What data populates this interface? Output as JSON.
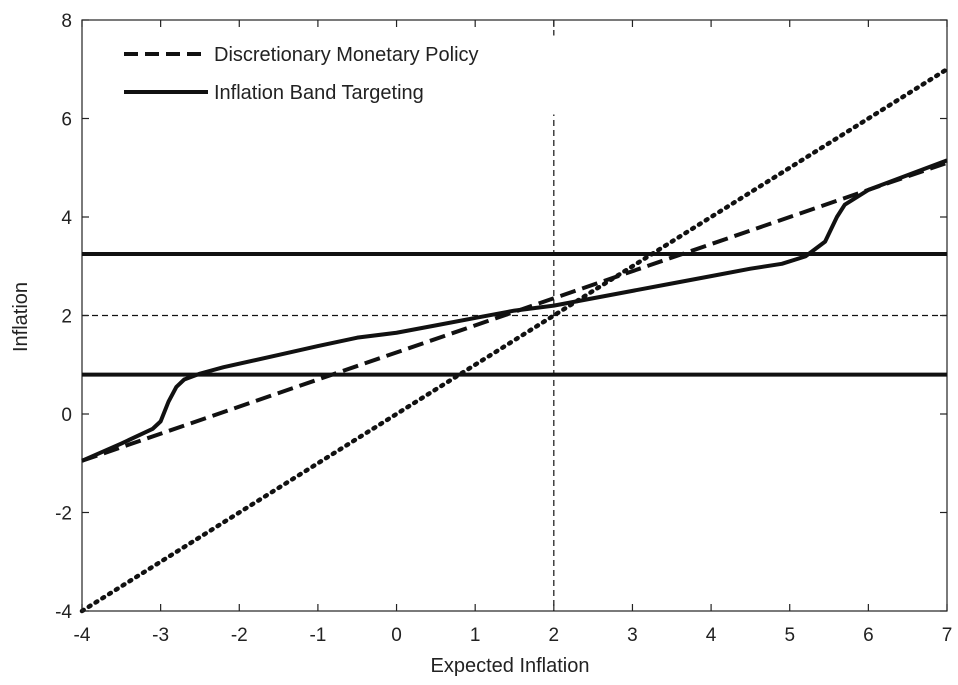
{
  "chart_data": {
    "type": "line",
    "title": "",
    "xlabel": "Expected Inflation",
    "ylabel": "Inflation",
    "xlim": [
      -4,
      7
    ],
    "ylim": [
      -4,
      8
    ],
    "xticks": [
      -4,
      -3,
      -2,
      -1,
      0,
      1,
      2,
      3,
      4,
      5,
      6,
      7
    ],
    "yticks": [
      -4,
      -2,
      0,
      2,
      4,
      6,
      8
    ],
    "grid": false,
    "legend_position": "top-left",
    "reference_lines": {
      "vertical_dashed_x": 2,
      "horizontal_dashed_y": 2,
      "band_upper": 3.25,
      "band_lower": 0.8
    },
    "series": [
      {
        "name": "Discretionary Monetary Policy",
        "style": "dashed",
        "x": [
          -4,
          7
        ],
        "y": [
          -0.95,
          5.1
        ]
      },
      {
        "name": "Inflation Band Targeting",
        "style": "solid",
        "x": [
          -4,
          -3.5,
          -3.1,
          -3.0,
          -2.9,
          -2.8,
          -2.7,
          -2.5,
          -2.2,
          -1.5,
          -1.0,
          -0.5,
          0.0,
          0.5,
          1.0,
          1.5,
          2.0,
          2.5,
          3.0,
          3.5,
          4.0,
          4.5,
          4.9,
          5.2,
          5.45,
          5.6,
          5.7,
          6.0,
          6.5,
          7.0
        ],
        "y": [
          -0.95,
          -0.6,
          -0.3,
          -0.15,
          0.25,
          0.55,
          0.7,
          0.82,
          0.95,
          1.2,
          1.38,
          1.55,
          1.65,
          1.8,
          1.95,
          2.1,
          2.2,
          2.35,
          2.5,
          2.65,
          2.8,
          2.95,
          3.05,
          3.2,
          3.5,
          4.0,
          4.25,
          4.55,
          4.85,
          5.15
        ]
      },
      {
        "style": "dotted",
        "x": [
          -4,
          7
        ],
        "y": [
          -4,
          7
        ]
      }
    ]
  }
}
